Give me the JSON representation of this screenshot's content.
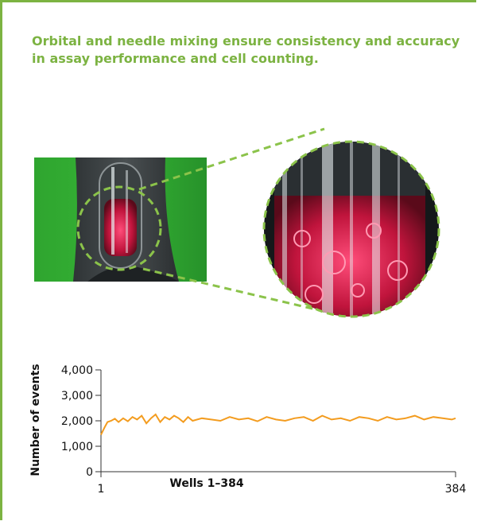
{
  "headline": "Orbital and needle mixing ensure consistency and accuracy in assay performance and cell counting.",
  "colors": {
    "accent": "#7cb342",
    "line": "#f39c1f",
    "dashed": "#8bc34a"
  },
  "images": {
    "left": "well-mixing-photo",
    "right": "magnified-well-photo"
  },
  "chart_data": {
    "type": "line",
    "title": "",
    "xlabel": "Wells 1–384",
    "ylabel": "Number of events",
    "x_range": [
      1,
      384
    ],
    "ylim": [
      0,
      4000
    ],
    "yticks": [
      "0",
      "1,000",
      "2,000",
      "3,000",
      "4,000"
    ],
    "ytick_values": [
      0,
      1000,
      2000,
      3000,
      4000
    ],
    "xticks": [
      "1",
      "384"
    ],
    "xtick_values": [
      1,
      384
    ],
    "grid": false,
    "legend": "none",
    "series": [
      {
        "x": [
          1,
          3,
          5,
          8,
          12,
          16,
          20,
          25,
          30,
          35,
          40,
          45,
          50,
          55,
          60,
          65,
          70,
          75,
          80,
          85,
          90,
          95,
          100,
          110,
          120,
          130,
          140,
          150,
          160,
          170,
          180,
          190,
          200,
          210,
          220,
          230,
          240,
          250,
          260,
          270,
          280,
          290,
          300,
          310,
          320,
          330,
          340,
          350,
          360,
          370,
          380,
          384
        ],
        "values": [
          1450,
          1600,
          1750,
          1950,
          2000,
          2080,
          1950,
          2100,
          1980,
          2150,
          2050,
          2200,
          1900,
          2100,
          2250,
          1950,
          2150,
          2050,
          2200,
          2100,
          1950,
          2150,
          2000,
          2100,
          2050,
          2000,
          2150,
          2050,
          2100,
          1980,
          2150,
          2050,
          2000,
          2100,
          2150,
          2000,
          2200,
          2050,
          2100,
          2000,
          2150,
          2100,
          2000,
          2150,
          2050,
          2100,
          2200,
          2050,
          2150,
          2100,
          2050,
          2100
        ]
      }
    ]
  }
}
